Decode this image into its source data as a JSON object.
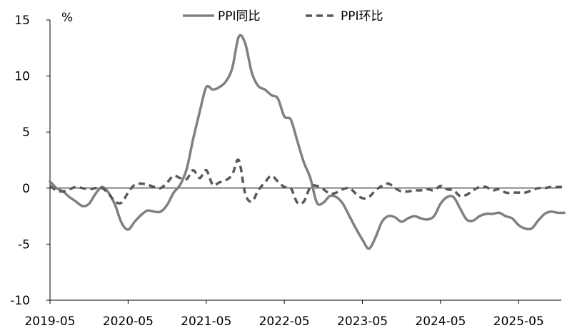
{
  "chart_data": {
    "type": "line",
    "unit_label": "%",
    "ylim": [
      -10,
      15
    ],
    "yticks": [
      -10,
      -5,
      0,
      5,
      10,
      15
    ],
    "xlim": [
      "2019-05",
      "2025-12"
    ],
    "xticks": [
      "2019-05",
      "2020-05",
      "2021-05",
      "2022-05",
      "2023-05",
      "2024-05",
      "2025-05"
    ],
    "grid": false,
    "legend_position": "top",
    "colors": {
      "yoy": "#808080",
      "mom": "#595959"
    },
    "series": [
      {
        "name": "PPI同比",
        "style": "solid",
        "x": [
          "2019-05",
          "2019-06",
          "2019-07",
          "2019-08",
          "2019-09",
          "2019-10",
          "2019-11",
          "2019-12",
          "2020-01",
          "2020-02",
          "2020-03",
          "2020-04",
          "2020-05",
          "2020-06",
          "2020-07",
          "2020-08",
          "2020-09",
          "2020-10",
          "2020-11",
          "2020-12",
          "2021-01",
          "2021-02",
          "2021-03",
          "2021-04",
          "2021-05",
          "2021-06",
          "2021-07",
          "2021-08",
          "2021-09",
          "2021-10",
          "2021-11",
          "2021-12",
          "2022-01",
          "2022-02",
          "2022-03",
          "2022-04",
          "2022-05",
          "2022-06",
          "2022-07",
          "2022-08",
          "2022-09",
          "2022-10",
          "2022-11",
          "2022-12",
          "2023-01",
          "2023-02",
          "2023-03",
          "2023-04",
          "2023-05",
          "2023-06",
          "2023-07",
          "2023-08",
          "2023-09",
          "2023-10",
          "2023-11",
          "2023-12",
          "2024-01",
          "2024-02",
          "2024-03",
          "2024-04",
          "2024-05",
          "2024-06",
          "2024-07",
          "2024-08",
          "2024-09",
          "2024-10",
          "2024-11",
          "2024-12",
          "2025-01",
          "2025-02",
          "2025-03",
          "2025-04",
          "2025-05",
          "2025-06",
          "2025-07",
          "2025-08",
          "2025-09",
          "2025-10",
          "2025-11",
          "2025-12"
        ],
        "values": [
          0.6,
          0.0,
          -0.3,
          -0.8,
          -1.2,
          -1.6,
          -1.4,
          -0.5,
          0.1,
          -0.4,
          -1.5,
          -3.1,
          -3.7,
          -3.0,
          -2.4,
          -2.0,
          -2.1,
          -2.1,
          -1.5,
          -0.4,
          0.3,
          1.7,
          4.4,
          6.8,
          9.0,
          8.8,
          9.0,
          9.5,
          10.7,
          13.5,
          12.9,
          10.3,
          9.1,
          8.8,
          8.3,
          8.0,
          6.4,
          6.1,
          4.2,
          2.3,
          0.9,
          -1.3,
          -1.3,
          -0.7,
          -0.8,
          -1.4,
          -2.5,
          -3.6,
          -4.6,
          -5.4,
          -4.4,
          -3.0,
          -2.5,
          -2.6,
          -3.0,
          -2.7,
          -2.5,
          -2.7,
          -2.8,
          -2.5,
          -1.4,
          -0.8,
          -0.8,
          -1.8,
          -2.8,
          -2.9,
          -2.5,
          -2.3,
          -2.3,
          -2.2,
          -2.5,
          -2.7,
          -3.3,
          -3.6,
          -3.6,
          -2.9,
          -2.3,
          -2.1,
          -2.2,
          -2.2
        ]
      },
      {
        "name": "PPI环比",
        "style": "dashed",
        "x": [
          "2019-05",
          "2019-06",
          "2019-07",
          "2019-08",
          "2019-09",
          "2019-10",
          "2019-11",
          "2019-12",
          "2020-01",
          "2020-02",
          "2020-03",
          "2020-04",
          "2020-05",
          "2020-06",
          "2020-07",
          "2020-08",
          "2020-09",
          "2020-10",
          "2020-11",
          "2020-12",
          "2021-01",
          "2021-02",
          "2021-03",
          "2021-04",
          "2021-05",
          "2021-06",
          "2021-07",
          "2021-08",
          "2021-09",
          "2021-10",
          "2021-11",
          "2021-12",
          "2022-01",
          "2022-02",
          "2022-03",
          "2022-04",
          "2022-05",
          "2022-06",
          "2022-07",
          "2022-08",
          "2022-09",
          "2022-10",
          "2022-11",
          "2022-12",
          "2023-01",
          "2023-02",
          "2023-03",
          "2023-04",
          "2023-05",
          "2023-06",
          "2023-07",
          "2023-08",
          "2023-09",
          "2023-10",
          "2023-11",
          "2023-12",
          "2024-01",
          "2024-02",
          "2024-03",
          "2024-04",
          "2024-05",
          "2024-06",
          "2024-07",
          "2024-08",
          "2024-09",
          "2024-10",
          "2024-11",
          "2024-12",
          "2025-01",
          "2025-02",
          "2025-03",
          "2025-04",
          "2025-05",
          "2025-06",
          "2025-07",
          "2025-08",
          "2025-09",
          "2025-10",
          "2025-11",
          "2025-12"
        ],
        "values": [
          0.2,
          -0.2,
          -0.3,
          -0.1,
          0.1,
          0.0,
          -0.1,
          0.0,
          0.0,
          -0.5,
          -1.2,
          -1.3,
          -0.4,
          0.3,
          0.4,
          0.3,
          0.1,
          0.0,
          0.5,
          1.1,
          0.9,
          0.8,
          1.6,
          0.9,
          1.6,
          0.3,
          0.5,
          0.7,
          1.2,
          2.5,
          -0.5,
          -1.2,
          -0.2,
          0.5,
          1.1,
          0.6,
          0.1,
          0.0,
          -1.3,
          -1.2,
          0.1,
          0.2,
          -0.1,
          -0.5,
          -0.4,
          -0.1,
          0.0,
          -0.5,
          -0.9,
          -0.8,
          -0.2,
          0.2,
          0.4,
          0.0,
          -0.3,
          -0.3,
          -0.2,
          -0.2,
          -0.1,
          -0.2,
          0.2,
          -0.1,
          -0.2,
          -0.7,
          -0.6,
          -0.2,
          0.1,
          0.1,
          -0.2,
          -0.1,
          -0.4,
          -0.4,
          -0.4,
          -0.4,
          -0.2,
          0.0,
          0.0,
          0.1,
          0.1,
          0.1
        ]
      }
    ]
  }
}
